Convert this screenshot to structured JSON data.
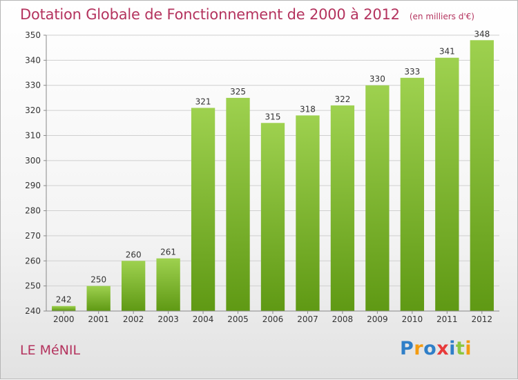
{
  "header": {
    "title": "Dotation Globale de Fonctionnement de 2000 à 2012",
    "subtitle": "(en milliers d'€)"
  },
  "footer": {
    "commune": "LE MéNIL",
    "logo": [
      "P",
      "r",
      "o",
      "x",
      "i",
      "t",
      "i"
    ]
  },
  "colors": {
    "title": "#b4335e",
    "bar_top": "#9ed14f",
    "bar_bottom": "#5f9914",
    "grid": "#cfcfcf",
    "logo": [
      "#2f7fc8",
      "#f39c12",
      "#2f7fc8",
      "#e83a3a",
      "#2f7fc8",
      "#8cc63f",
      "#f39c12"
    ]
  },
  "chart_data": {
    "type": "bar",
    "title": "Dotation Globale de Fonctionnement de 2000 à 2012",
    "subtitle": "(en milliers d'€)",
    "xlabel": "",
    "ylabel": "",
    "categories": [
      "2000",
      "2001",
      "2002",
      "2003",
      "2004",
      "2005",
      "2006",
      "2007",
      "2008",
      "2009",
      "2010",
      "2011",
      "2012"
    ],
    "values": [
      242,
      250,
      260,
      261,
      321,
      325,
      315,
      318,
      322,
      330,
      333,
      341,
      348
    ],
    "ylim": [
      240,
      350
    ],
    "yticks": [
      240,
      250,
      260,
      270,
      280,
      290,
      300,
      310,
      320,
      330,
      340,
      350
    ],
    "grid": true,
    "legend": "none"
  }
}
